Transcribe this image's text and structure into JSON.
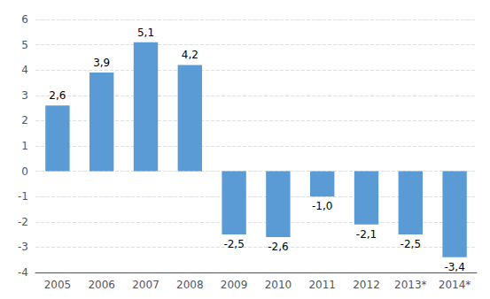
{
  "chart_data": {
    "type": "bar",
    "categories": [
      "2005",
      "2006",
      "2007",
      "2008",
      "2009",
      "2010",
      "2011",
      "2012",
      "2013*",
      "2014*"
    ],
    "values": [
      2.6,
      3.9,
      5.1,
      4.2,
      -2.5,
      -2.6,
      -1.0,
      -2.1,
      -2.5,
      -3.4
    ],
    "value_labels": [
      "2,6",
      "3,9",
      "5,1",
      "4,2",
      "-2,5",
      "-2,6",
      "-1,0",
      "-2,1",
      "-2,5",
      "-3,4"
    ],
    "color": "#5B9BD5",
    "ylim": [
      -4,
      6
    ],
    "yticks": [
      -4,
      -3,
      -2,
      -1,
      0,
      1,
      2,
      3,
      4,
      5,
      6
    ],
    "grid": true,
    "data_labels": true
  }
}
